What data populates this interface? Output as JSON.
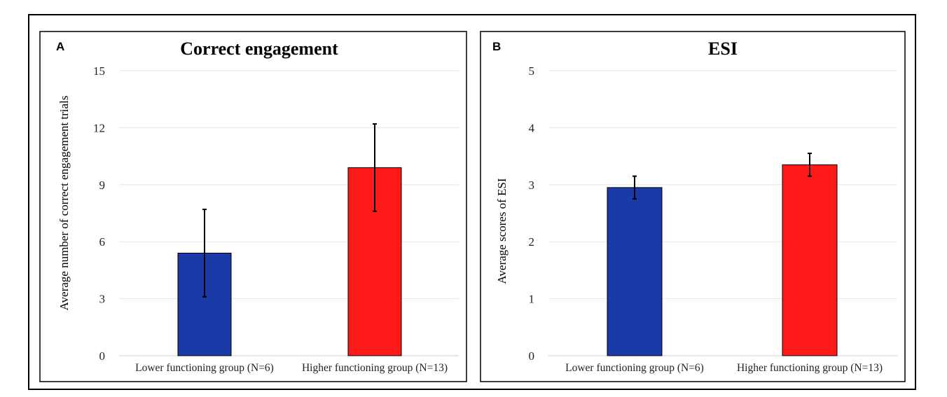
{
  "chart_data": [
    {
      "type": "bar",
      "panel_label": "A",
      "title": "Correct engagement",
      "xlabel": "",
      "ylabel": "Average number of correct engagement trials",
      "categories": [
        "Lower functioning group (N=6)",
        "Higher functioning group (N=13)"
      ],
      "values": [
        5.4,
        9.9
      ],
      "error": [
        2.3,
        2.3
      ],
      "colors": [
        "#1a3aa8",
        "#ff1a1a"
      ],
      "ylim": [
        0,
        15
      ],
      "yticks": [
        "0",
        "3",
        "6",
        "9",
        "12",
        "15"
      ],
      "grid": true
    },
    {
      "type": "bar",
      "panel_label": "B",
      "title": "ESI",
      "xlabel": "",
      "ylabel": "Average scores of  ESI",
      "categories": [
        "Lower functioning group (N=6)",
        "Higher functioning group (N=13)"
      ],
      "values": [
        2.95,
        3.35
      ],
      "error": [
        0.2,
        0.2
      ],
      "colors": [
        "#1a3aa8",
        "#ff1a1a"
      ],
      "ylim": [
        0,
        5
      ],
      "yticks": [
        "0",
        "1",
        "2",
        "3",
        "4",
        "5"
      ],
      "grid": true
    }
  ]
}
